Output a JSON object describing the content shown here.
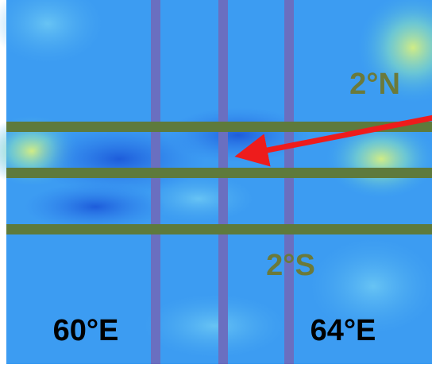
{
  "labels": {
    "north": "2°N",
    "south": "2°S",
    "west": "60°E",
    "east": "64°E"
  }
}
